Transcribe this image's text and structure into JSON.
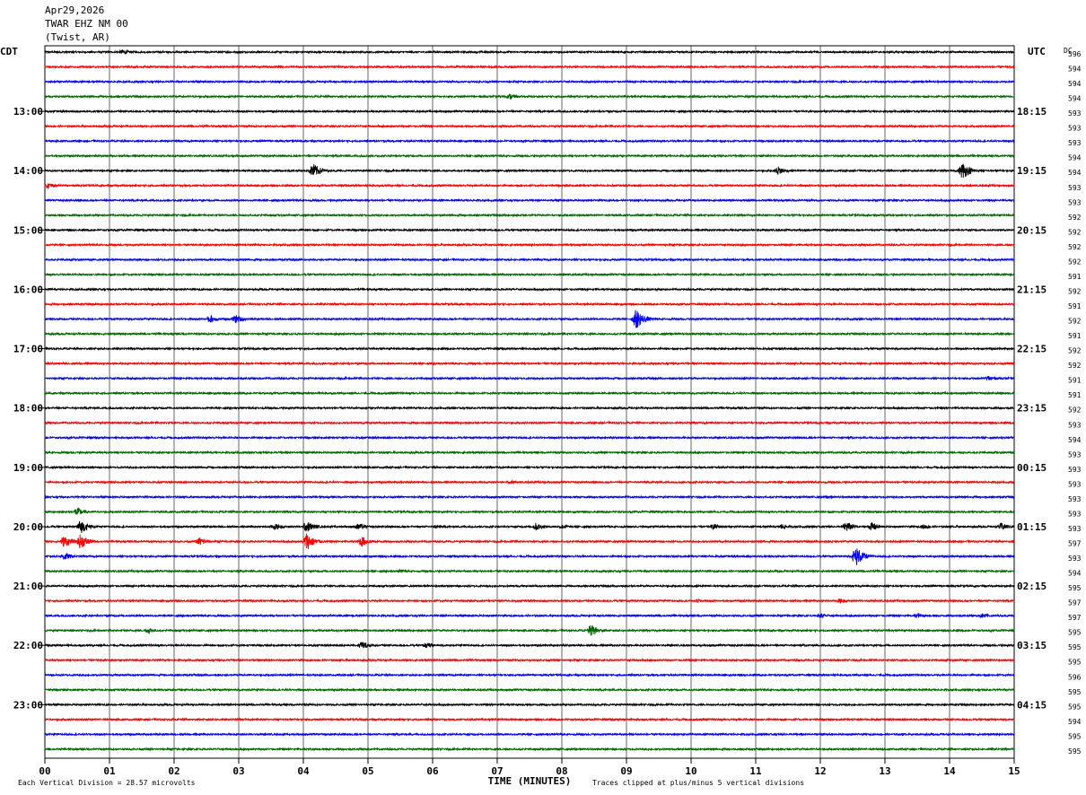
{
  "header": {
    "date": "Apr29,2026",
    "station": "TWAR EHZ NM 00",
    "location": "(Twist, AR)"
  },
  "chart_data": {
    "type": "line",
    "title": "",
    "left_axis_label": "CDT",
    "right_axis_label": "UTC",
    "dc_label": "DC",
    "xlabel": "TIME (MINUTES)",
    "xlim": [
      0,
      15
    ],
    "x_ticks": [
      "00",
      "01",
      "02",
      "03",
      "04",
      "05",
      "06",
      "07",
      "08",
      "09",
      "10",
      "11",
      "12",
      "13",
      "14",
      "15"
    ],
    "grid": true,
    "trace_colors": [
      "#000000",
      "#ff0000",
      "#0000ff",
      "#006600"
    ],
    "left_hour_labels": [
      "13:00",
      "14:00",
      "15:00",
      "16:00",
      "17:00",
      "18:00",
      "19:00",
      "20:00",
      "21:00",
      "22:00",
      "23:00"
    ],
    "right_hour_labels": [
      "18:15",
      "19:15",
      "20:15",
      "21:15",
      "22:15",
      "23:15",
      "00:15",
      "01:15",
      "02:15",
      "03:15",
      "04:15"
    ],
    "first_label_row": 4,
    "dc_offsets": [
      596,
      594,
      594,
      594,
      593,
      593,
      593,
      594,
      594,
      593,
      593,
      592,
      592,
      592,
      592,
      591,
      592,
      591,
      592,
      591,
      592,
      592,
      591,
      591,
      592,
      593,
      594,
      593,
      593,
      593,
      593,
      593,
      593,
      597,
      593,
      594,
      595,
      597,
      597,
      595,
      595,
      595,
      596,
      595,
      595,
      594,
      595,
      595
    ],
    "events": [
      {
        "row": 0,
        "minute": 1.2,
        "amp": 0.5
      },
      {
        "row": 3,
        "minute": 7.2,
        "amp": 0.6
      },
      {
        "row": 8,
        "minute": 4.15,
        "amp": 1.5
      },
      {
        "row": 8,
        "minute": 11.35,
        "amp": 0.9
      },
      {
        "row": 8,
        "minute": 14.2,
        "amp": 1.7
      },
      {
        "row": 9,
        "minute": 0.05,
        "amp": 0.6
      },
      {
        "row": 18,
        "minute": 2.55,
        "amp": 0.9
      },
      {
        "row": 18,
        "minute": 2.95,
        "amp": 0.9
      },
      {
        "row": 18,
        "minute": 9.15,
        "amp": 2.0
      },
      {
        "row": 22,
        "minute": 14.6,
        "amp": 0.6
      },
      {
        "row": 29,
        "minute": 7.2,
        "amp": 0.4
      },
      {
        "row": 30,
        "minute": 12.1,
        "amp": 0.4
      },
      {
        "row": 31,
        "minute": 0.5,
        "amp": 0.9
      },
      {
        "row": 32,
        "minute": 0.55,
        "amp": 1.4
      },
      {
        "row": 32,
        "minute": 3.55,
        "amp": 0.7
      },
      {
        "row": 32,
        "minute": 4.05,
        "amp": 1.2
      },
      {
        "row": 32,
        "minute": 4.85,
        "amp": 0.7
      },
      {
        "row": 32,
        "minute": 6.05,
        "amp": 0.4
      },
      {
        "row": 32,
        "minute": 7.6,
        "amp": 0.8
      },
      {
        "row": 32,
        "minute": 8.0,
        "amp": 0.5
      },
      {
        "row": 32,
        "minute": 10.35,
        "amp": 0.6
      },
      {
        "row": 32,
        "minute": 11.4,
        "amp": 0.6
      },
      {
        "row": 32,
        "minute": 12.4,
        "amp": 1.1
      },
      {
        "row": 32,
        "minute": 12.8,
        "amp": 0.9
      },
      {
        "row": 32,
        "minute": 13.6,
        "amp": 0.5
      },
      {
        "row": 32,
        "minute": 14.8,
        "amp": 0.8
      },
      {
        "row": 33,
        "minute": 0.3,
        "amp": 1.2
      },
      {
        "row": 33,
        "minute": 0.55,
        "amp": 1.5
      },
      {
        "row": 33,
        "minute": 2.4,
        "amp": 0.9
      },
      {
        "row": 33,
        "minute": 4.05,
        "amp": 1.8
      },
      {
        "row": 33,
        "minute": 4.9,
        "amp": 1.1
      },
      {
        "row": 34,
        "minute": 0.3,
        "amp": 0.8
      },
      {
        "row": 34,
        "minute": 12.55,
        "amp": 2.0
      },
      {
        "row": 35,
        "minute": 5.5,
        "amp": 0.4
      },
      {
        "row": 37,
        "minute": 10.1,
        "amp": 0.4
      },
      {
        "row": 37,
        "minute": 12.3,
        "amp": 0.5
      },
      {
        "row": 38,
        "minute": 12.0,
        "amp": 0.5
      },
      {
        "row": 38,
        "minute": 13.5,
        "amp": 0.5
      },
      {
        "row": 38,
        "minute": 14.5,
        "amp": 0.5
      },
      {
        "row": 39,
        "minute": 1.6,
        "amp": 0.6
      },
      {
        "row": 39,
        "minute": 8.45,
        "amp": 1.2
      },
      {
        "row": 40,
        "minute": 4.9,
        "amp": 0.9
      },
      {
        "row": 40,
        "minute": 5.9,
        "amp": 0.6
      }
    ]
  },
  "footer": {
    "left_note": "Each Vertical Division =   28.57 microvolts",
    "right_note": "Traces clipped at plus/minus 5 vertical divisions"
  }
}
